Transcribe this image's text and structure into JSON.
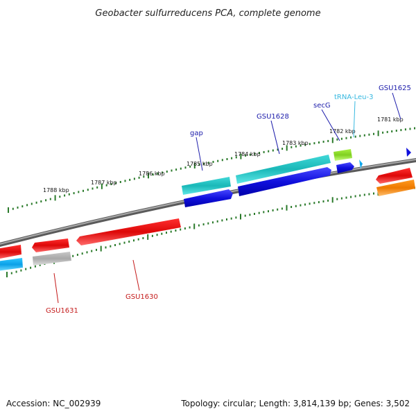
{
  "title": "Geobacter sulfurreducens PCA, complete genome",
  "footer": {
    "accession": "Accession: NC_002939",
    "summary": "Topology: circular; Length: 3,814,139 bp; Genes: 3,502"
  },
  "ruler": {
    "labels": [
      "1781 kbp",
      "1782 kbp",
      "1783 kbp",
      "1784 kbp",
      "1785 kbp",
      "1786 kbp",
      "1787 kbp",
      "1788 kbp"
    ]
  },
  "genes": {
    "GSU1625": {
      "label": "GSU1625",
      "color": "#1a1aaa"
    },
    "tRNA": {
      "label": "tRNA-Leu-3",
      "color": "#36b8e0"
    },
    "secG": {
      "label": "secG",
      "color": "#1a1aaa"
    },
    "GSU1628": {
      "label": "GSU1628",
      "color": "#1a1aaa"
    },
    "gap": {
      "label": "gap",
      "color": "#1a1aaa"
    },
    "GSU1630": {
      "label": "GSU1630",
      "color": "#c41a1a"
    },
    "GSU1631": {
      "label": "GSU1631",
      "color": "#c41a1a"
    }
  },
  "colors": {
    "backbone": "#7a7a7a",
    "tick": "#2a7a2a",
    "forward_cds": "#1010dd",
    "forward_aux": "#20c8c8",
    "trna": "#90e030",
    "reverse_cds": "#ee1010",
    "reverse_aux": "#ff8a10",
    "pseudo": "#b8b8b8",
    "light_blue": "#10b0f0"
  }
}
